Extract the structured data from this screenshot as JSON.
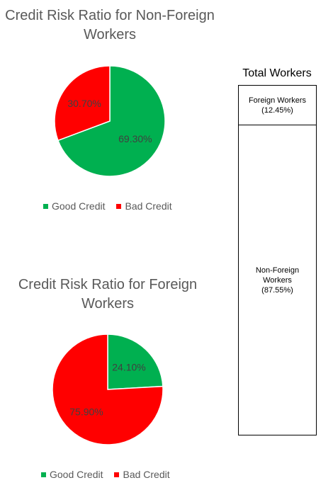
{
  "colors": {
    "good": "#00b050",
    "bad": "#ff0000"
  },
  "chart_data": [
    {
      "type": "pie",
      "title": "Credit Risk Ratio for Non-Foreign Workers",
      "categories": [
        "Good Credit",
        "Bad Credit"
      ],
      "values": [
        69.3,
        30.7
      ],
      "data_labels": [
        "69.30%",
        "30.70%"
      ],
      "legend": [
        "Good Credit",
        "Bad Credit"
      ],
      "legend_position": "bottom"
    },
    {
      "type": "pie",
      "title": "Credit Risk Ratio for Foreign Workers",
      "categories": [
        "Good Credit",
        "Bad Credit"
      ],
      "values": [
        24.1,
        75.9
      ],
      "data_labels": [
        "24.10%",
        "75.90%"
      ],
      "legend": [
        "Good Credit",
        "Bad Credit"
      ],
      "legend_position": "bottom"
    },
    {
      "type": "bar",
      "title": "Total Workers",
      "categories": [
        "Foreign Workers",
        "Non-Foreign Workers"
      ],
      "values": [
        12.45,
        87.55
      ],
      "data_labels": [
        "Foreign Workers\n(12.45%)",
        "Non-Foreign\nWorkers\n(87.55%)"
      ],
      "stacked": true
    }
  ]
}
